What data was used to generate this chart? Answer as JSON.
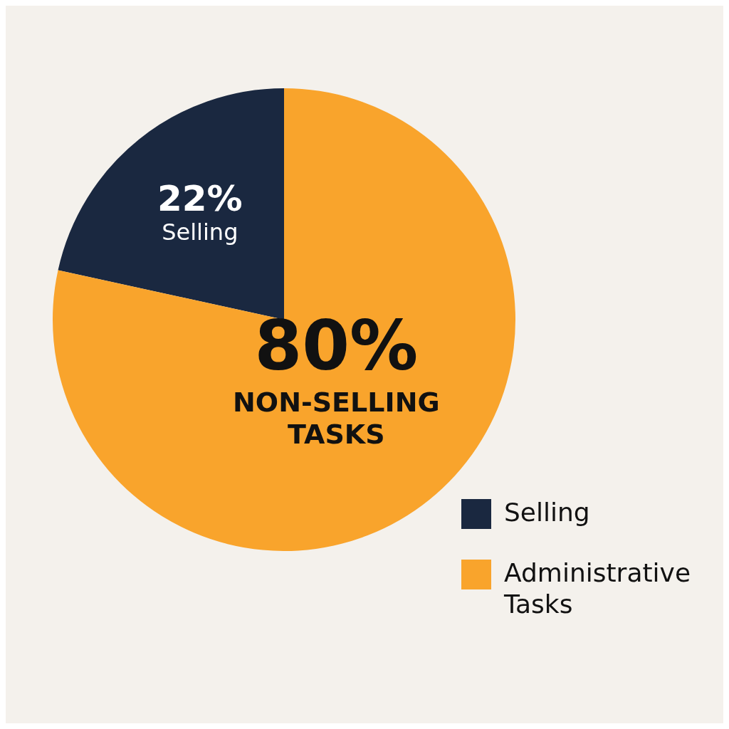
{
  "chart_data": {
    "type": "pie",
    "categories": [
      "Selling",
      "Administrative Tasks"
    ],
    "values": [
      22,
      80
    ],
    "colors": [
      "#1a2840",
      "#f9a42c"
    ],
    "value_labels": [
      "22%\nSelling",
      "80%\nNON-SELLING\nTASKS"
    ],
    "legend": "bottom right"
  }
}
